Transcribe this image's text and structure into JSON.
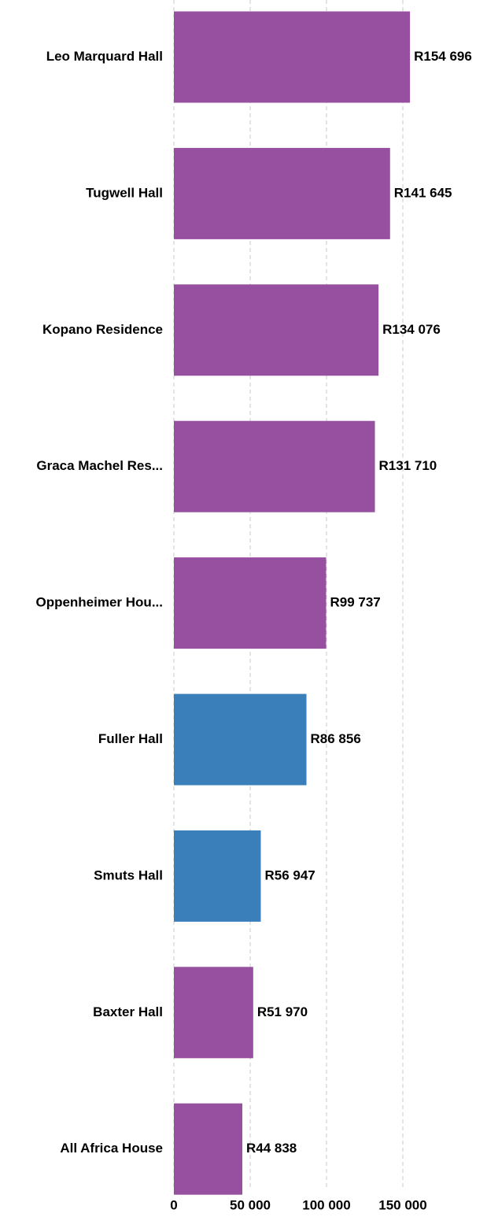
{
  "chart_data": {
    "type": "bar",
    "orientation": "horizontal",
    "categories": [
      "Leo Marquard Hall",
      "Tugwell Hall",
      "Kopano Residence",
      "Graca Machel Res...",
      "Oppenheimer Hou...",
      "Fuller Hall",
      "Smuts Hall",
      "Baxter Hall",
      "All Africa House"
    ],
    "values": [
      154696,
      141645,
      134076,
      131710,
      99737,
      86856,
      56947,
      51970,
      44838
    ],
    "value_labels": [
      "R154 696",
      "R141 645",
      "R134 076",
      "R131 710",
      "R99 737",
      "R86 856",
      "R56 947",
      "R51 970",
      "R44 838"
    ],
    "colors": [
      "#974fa0",
      "#974fa0",
      "#974fa0",
      "#974fa0",
      "#974fa0",
      "#3a7fba",
      "#3a7fba",
      "#974fa0",
      "#974fa0"
    ],
    "xlim": [
      0,
      200000
    ],
    "xticks": [
      0,
      {
        "value": 50000,
        "label": "50 000"
      },
      {
        "value": 100000,
        "label": "100 000"
      },
      {
        "value": 150000,
        "label": "150 000"
      }
    ],
    "grid": true
  }
}
